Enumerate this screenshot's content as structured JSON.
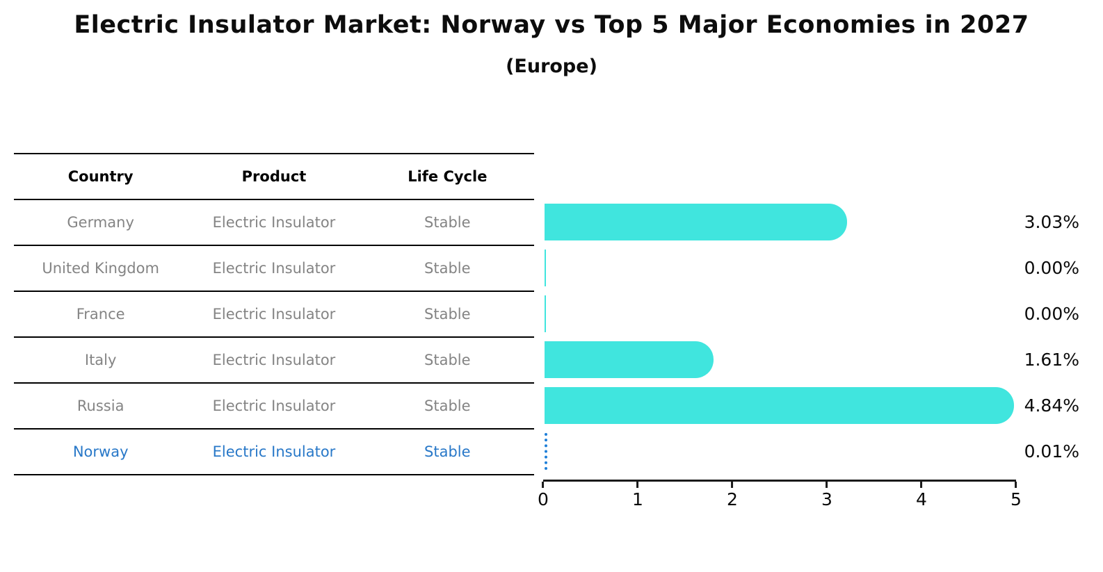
{
  "header": {
    "title": "Electric Insulator Market: Norway vs Top 5 Major Economies in 2027",
    "subtitle": "(Europe)"
  },
  "table": {
    "headers": [
      "Country",
      "Product",
      "Life Cycle"
    ],
    "rows": [
      {
        "country": "Germany",
        "product": "Electric Insulator",
        "life_cycle": "Stable",
        "highlighted": false
      },
      {
        "country": "United Kingdom",
        "product": "Electric Insulator",
        "life_cycle": "Stable",
        "highlighted": false
      },
      {
        "country": "France",
        "product": "Electric Insulator",
        "life_cycle": "Stable",
        "highlighted": false
      },
      {
        "country": "Italy",
        "product": "Electric Insulator",
        "life_cycle": "Stable",
        "highlighted": false
      },
      {
        "country": "Russia",
        "product": "Electric Insulator",
        "life_cycle": "Stable",
        "highlighted": false
      },
      {
        "country": "Norway",
        "product": "Electric Insulator",
        "life_cycle": "Stable",
        "highlighted": true
      }
    ]
  },
  "chart_data": {
    "type": "bar",
    "orientation": "horizontal",
    "title": "Electric Insulator Market: Norway vs Top 5 Major Economies in 2027",
    "subtitle": "(Europe)",
    "categories": [
      "Germany",
      "United Kingdom",
      "France",
      "Italy",
      "Russia",
      "Norway"
    ],
    "values": [
      3.03,
      0.0,
      0.0,
      1.61,
      4.84,
      0.01
    ],
    "value_labels": [
      "3.03%",
      "0.00%",
      "0.00%",
      "1.61%",
      "4.84%",
      "0.01%"
    ],
    "x_ticks": [
      "0",
      "1",
      "2",
      "3",
      "4",
      "5"
    ],
    "xlim": [
      0,
      5
    ],
    "grid": false,
    "legend": false,
    "bar_color": "#40e5de",
    "highlight_color": "#1e7fd8",
    "highlight_text_color": "#2878c8",
    "highlight_index": 5
  }
}
